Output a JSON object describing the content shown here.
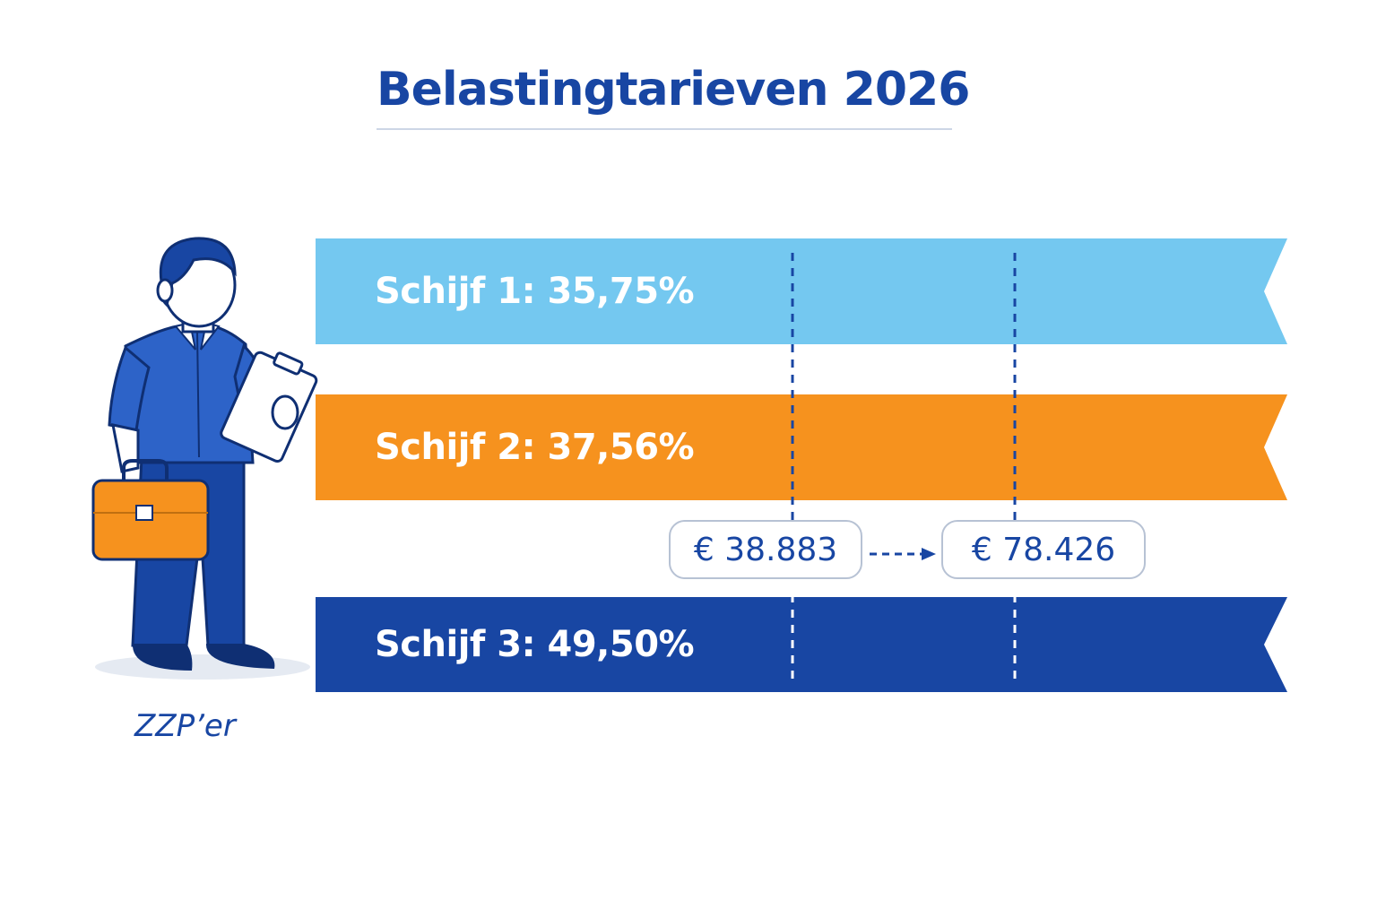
{
  "title": "Belastingtarieven 2026",
  "colors": {
    "title": "#1846a3",
    "band_1": "#74c8f0",
    "band_2": "#f6921e",
    "band_3": "#1846a3",
    "divider": "#1846a3",
    "pill_border": "#b7c2d4"
  },
  "brackets": [
    {
      "label": "Schijf 1: 35,75%"
    },
    {
      "label": "Schijf 2: 37,56%"
    },
    {
      "label": "Schijf 3: 49,50%"
    }
  ],
  "thresholds": [
    {
      "label": "€ 38.883"
    },
    {
      "label": "€ 78.426"
    }
  ],
  "person": {
    "label": "ZZP’er",
    "icon": "freelancer-with-briefcase-and-clipboard-icon"
  },
  "arrow_icon": "dashed-arrow-right-icon"
}
